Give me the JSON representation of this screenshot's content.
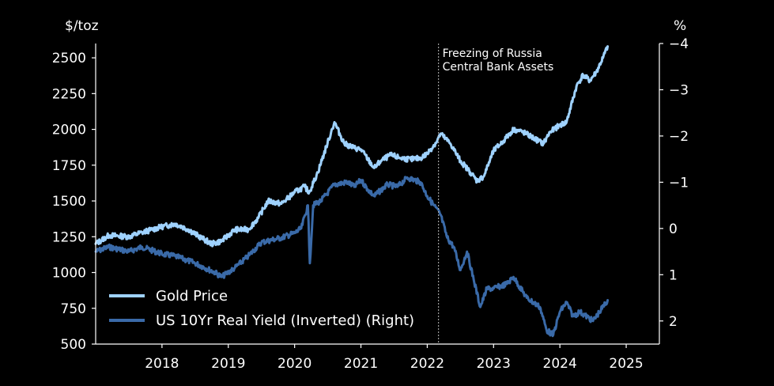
{
  "chart_data": {
    "type": "line",
    "left_axis": {
      "unit": "$/toz",
      "ylim": [
        500,
        2600
      ],
      "ticks": [
        500,
        750,
        1000,
        1250,
        1500,
        1750,
        2000,
        2250,
        2500
      ]
    },
    "right_axis": {
      "unit": "%",
      "ylim": [
        -4,
        2.5
      ],
      "inverted": true,
      "ticks": [
        -4,
        -3,
        -2,
        -1,
        0,
        1,
        2
      ],
      "tick_labels": [
        "−4",
        "−3",
        "−2",
        "−1",
        "0",
        "1",
        "2"
      ]
    },
    "x_axis": {
      "xlim": [
        2017.0,
        2025.5
      ],
      "ticks": [
        2018,
        2019,
        2020,
        2021,
        2022,
        2023,
        2024,
        2025
      ],
      "tick_labels": [
        "2018",
        "2019",
        "2020",
        "2021",
        "2022",
        "2023",
        "2024",
        "2025"
      ]
    },
    "annotation": {
      "x": 2022.17,
      "lines": [
        "Freezing of Russia",
        "Central Bank Assets"
      ]
    },
    "colors": {
      "gold": "#9fd2ff",
      "yield": "#3a6aa8",
      "background": "#000000",
      "axis": "#ffffff",
      "annotation_line": "#bbbbbb"
    },
    "legend_position": "lower-left",
    "series": [
      {
        "name": "Gold Price",
        "axis": "left",
        "x": [
          2017.0,
          2017.2,
          2017.5,
          2017.7,
          2017.85,
          2018.0,
          2018.2,
          2018.4,
          2018.6,
          2018.75,
          2018.9,
          2019.1,
          2019.3,
          2019.45,
          2019.6,
          2019.8,
          2020.0,
          2020.15,
          2020.22,
          2020.35,
          2020.55,
          2020.6,
          2020.75,
          2020.9,
          2021.0,
          2021.2,
          2021.3,
          2021.45,
          2021.6,
          2021.75,
          2021.9,
          2022.0,
          2022.15,
          2022.2,
          2022.35,
          2022.5,
          2022.65,
          2022.75,
          2022.85,
          2023.0,
          2023.15,
          2023.3,
          2023.45,
          2023.6,
          2023.75,
          2023.85,
          2024.0,
          2024.1,
          2024.25,
          2024.35,
          2024.45,
          2024.55,
          2024.65,
          2024.72
        ],
        "values": [
          1200,
          1260,
          1250,
          1280,
          1300,
          1320,
          1340,
          1300,
          1240,
          1200,
          1220,
          1300,
          1300,
          1380,
          1500,
          1480,
          1560,
          1600,
          1560,
          1700,
          1980,
          2050,
          1900,
          1870,
          1860,
          1730,
          1780,
          1820,
          1800,
          1790,
          1800,
          1830,
          1920,
          1970,
          1900,
          1780,
          1700,
          1640,
          1670,
          1850,
          1920,
          2000,
          1980,
          1940,
          1900,
          1980,
          2030,
          2050,
          2300,
          2380,
          2340,
          2400,
          2500,
          2580
        ]
      },
      {
        "name": "US 10Yr Real Yield (Inverted) (Right)",
        "axis": "right",
        "x": [
          2017.0,
          2017.2,
          2017.5,
          2017.7,
          2018.0,
          2018.2,
          2018.5,
          2018.8,
          2018.9,
          2019.1,
          2019.3,
          2019.5,
          2019.8,
          2020.0,
          2020.1,
          2020.2,
          2020.23,
          2020.28,
          2020.4,
          2020.6,
          2020.8,
          2020.9,
          2021.0,
          2021.1,
          2021.2,
          2021.4,
          2021.55,
          2021.7,
          2021.9,
          2022.0,
          2022.1,
          2022.2,
          2022.3,
          2022.4,
          2022.5,
          2022.6,
          2022.7,
          2022.8,
          2022.9,
          2023.0,
          2023.2,
          2023.3,
          2023.5,
          2023.7,
          2023.8,
          2023.9,
          2024.0,
          2024.1,
          2024.2,
          2024.3,
          2024.5,
          2024.6,
          2024.72
        ],
        "values": [
          0.5,
          0.4,
          0.5,
          0.4,
          0.55,
          0.6,
          0.75,
          0.95,
          1.05,
          0.85,
          0.6,
          0.3,
          0.2,
          0.1,
          0.0,
          -0.5,
          0.75,
          -0.5,
          -0.6,
          -0.95,
          -1.0,
          -0.9,
          -1.05,
          -0.85,
          -0.7,
          -0.95,
          -0.9,
          -1.1,
          -1.0,
          -0.7,
          -0.5,
          -0.3,
          0.2,
          0.4,
          0.9,
          0.5,
          1.1,
          1.7,
          1.3,
          1.3,
          1.2,
          1.05,
          1.5,
          1.7,
          2.2,
          2.3,
          1.8,
          1.6,
          1.9,
          1.8,
          2.0,
          1.8,
          1.55
        ]
      }
    ]
  }
}
